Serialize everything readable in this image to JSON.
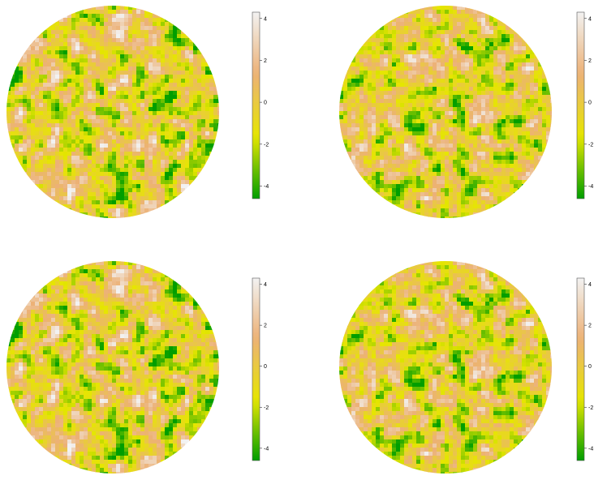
{
  "chart_data": [
    {
      "type": "heatmap",
      "projection": "sphere",
      "title": "",
      "value_range": [
        -4.6,
        4.3
      ],
      "colormap": [
        "#009e00",
        "#e6e600",
        "#ecb176",
        "#f2f2f2"
      ],
      "colorbar": {
        "ticks": [
          -4,
          -2,
          0,
          2,
          4
        ],
        "tick_labels": [
          "-4",
          "-2",
          "0",
          "2",
          "4"
        ]
      }
    },
    {
      "type": "heatmap",
      "projection": "sphere",
      "title": "",
      "value_range": [
        -4.6,
        4.3
      ],
      "colormap": [
        "#009e00",
        "#e6e600",
        "#ecb176",
        "#f2f2f2"
      ],
      "colorbar": {
        "ticks": [
          -4,
          -2,
          0,
          2,
          4
        ],
        "tick_labels": [
          "-4",
          "-2",
          "0",
          "2",
          "4"
        ]
      }
    },
    {
      "type": "heatmap",
      "projection": "sphere",
      "title": "",
      "value_range": [
        -4.6,
        4.3
      ],
      "colormap": [
        "#009e00",
        "#e6e600",
        "#ecb176",
        "#f2f2f2"
      ],
      "colorbar": {
        "ticks": [
          -4,
          -2,
          0,
          2,
          4
        ],
        "tick_labels": [
          "-4",
          "-2",
          "0",
          "2",
          "4"
        ]
      }
    },
    {
      "type": "heatmap",
      "projection": "sphere",
      "title": "",
      "value_range": [
        -4.6,
        4.3
      ],
      "colormap": [
        "#009e00",
        "#e6e600",
        "#ecb176",
        "#f2f2f2"
      ],
      "colorbar": {
        "ticks": [
          -4,
          -2,
          0,
          2,
          4
        ],
        "tick_labels": [
          "-4",
          "-2",
          "0",
          "2",
          "4"
        ]
      }
    }
  ]
}
